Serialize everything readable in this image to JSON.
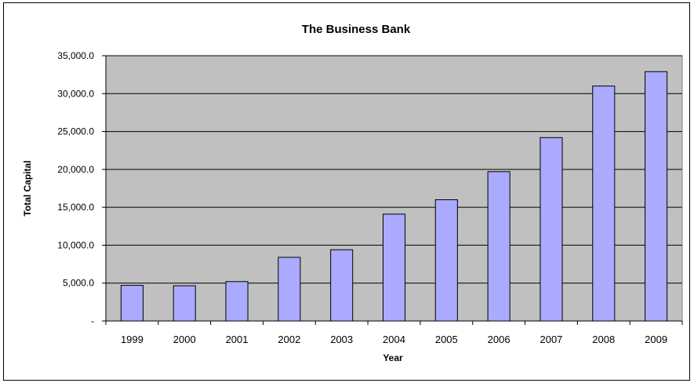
{
  "chart_data": {
    "type": "bar",
    "title": "The Business Bank",
    "xlabel": "Year",
    "ylabel": "Total Capital",
    "categories": [
      "1999",
      "2000",
      "2001",
      "2002",
      "2003",
      "2004",
      "2005",
      "2006",
      "2007",
      "2008",
      "2009"
    ],
    "values": [
      4700,
      4650,
      5200,
      8400,
      9400,
      14100,
      16000,
      19700,
      24200,
      31000,
      32900
    ],
    "ylim": [
      0,
      35000
    ],
    "yticks": [
      {
        "value": 0,
        "label": "-"
      },
      {
        "value": 5000,
        "label": "5,000.0"
      },
      {
        "value": 10000,
        "label": "10,000.0"
      },
      {
        "value": 15000,
        "label": "15,000.0"
      },
      {
        "value": 20000,
        "label": "20,000.0"
      },
      {
        "value": 25000,
        "label": "25,000.0"
      },
      {
        "value": 30000,
        "label": "30,000.0"
      },
      {
        "value": 35000,
        "label": "35,000.0"
      }
    ],
    "grid": true,
    "legend": "none",
    "colors": {
      "bar_fill": "#aaaaff",
      "bar_stroke": "#000000",
      "plot_background": "#c0c0c0",
      "grid": "#000000"
    }
  }
}
